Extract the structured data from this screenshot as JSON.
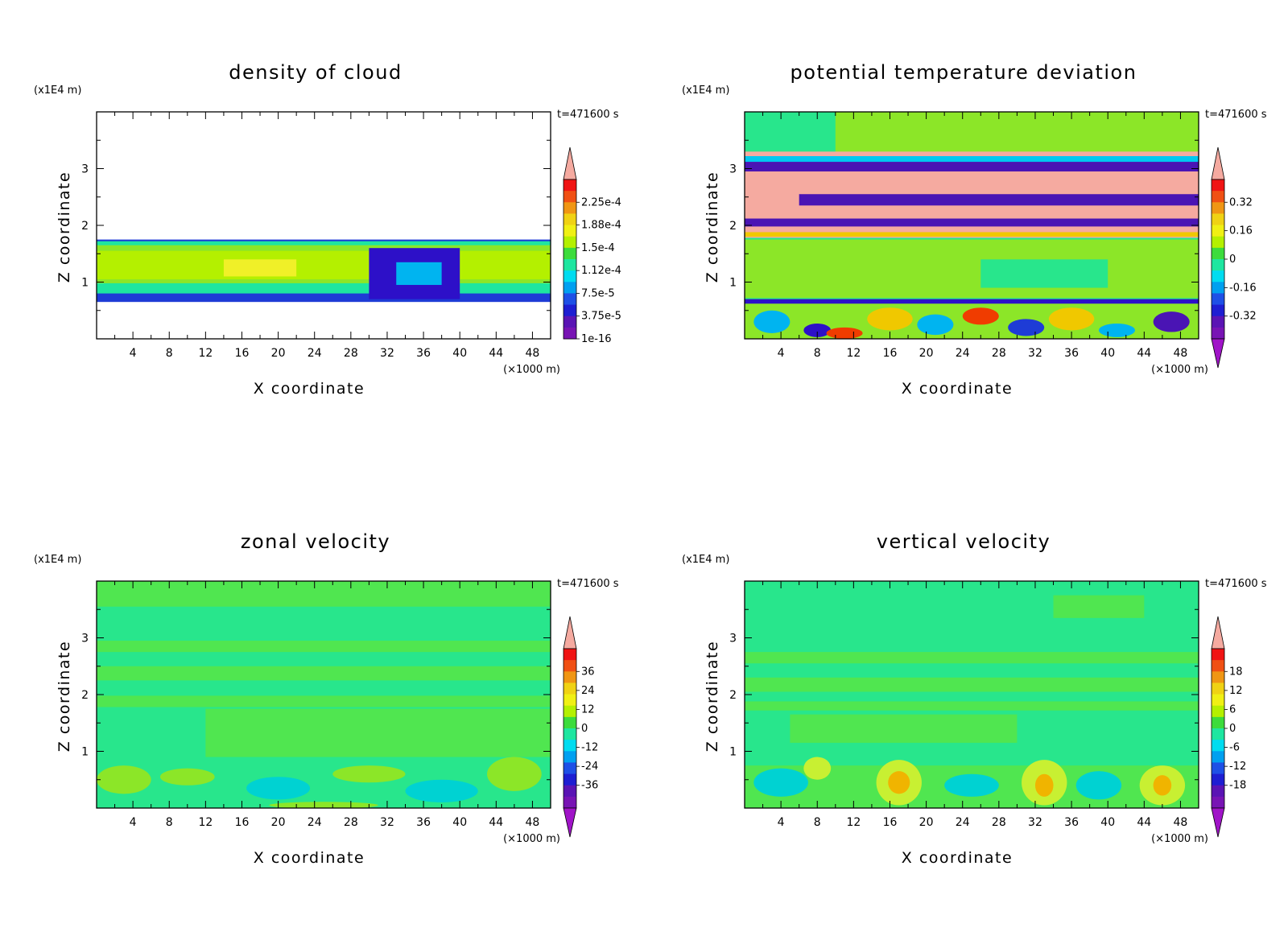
{
  "chart_data": [
    {
      "id": "cloud",
      "type": "heatmap",
      "title": "density of cloud",
      "xlabel": "X coordinate",
      "ylabel": "Z coordinate",
      "x_unit": "(×1000 m)",
      "y_unit": "(x1E4 m)",
      "time_label": "t=471600 s",
      "xlim": [
        0,
        50
      ],
      "ylim": [
        0,
        4
      ],
      "xticks": [
        "4",
        "8",
        "12",
        "16",
        "20",
        "24",
        "28",
        "32",
        "36",
        "40",
        "44",
        "48"
      ],
      "yticks": [
        "1",
        "2",
        "3"
      ],
      "colorbar": {
        "labels": [
          "2.25e-4",
          "1.88e-4",
          "1.5e-4",
          "1.12e-4",
          "7.5e-5",
          "3.75e-5",
          "1e-16"
        ],
        "bottom_arrow": false
      },
      "background": "#ffffff",
      "layers": [
        {
          "x0": 0,
          "x1": 50,
          "z0": 0.65,
          "z1": 1.75,
          "color": "#1e3cd6"
        },
        {
          "x0": 0,
          "x1": 50,
          "z0": 0.8,
          "z1": 1.72,
          "color": "#1ee6a0"
        },
        {
          "x0": 0,
          "x1": 50,
          "z0": 0.98,
          "z1": 1.65,
          "color": "#8ce628"
        },
        {
          "x0": 0,
          "x1": 50,
          "z0": 1.05,
          "z1": 1.55,
          "color": "#b4f000"
        },
        {
          "x0": 14,
          "x1": 22,
          "z0": 1.1,
          "z1": 1.4,
          "color": "#f0f028"
        },
        {
          "x0": 30,
          "x1": 40,
          "z0": 0.7,
          "z1": 1.6,
          "color": "#2d10c8"
        },
        {
          "x0": 33,
          "x1": 38,
          "z0": 0.95,
          "z1": 1.35,
          "color": "#00b4f0"
        }
      ]
    },
    {
      "id": "theta",
      "type": "heatmap",
      "title": "potential temperature deviation",
      "xlabel": "X coordinate",
      "ylabel": "Z coordinate",
      "x_unit": "(×1000 m)",
      "y_unit": "(x1E4 m)",
      "time_label": "t=471600 s",
      "xlim": [
        0,
        50
      ],
      "ylim": [
        0,
        4
      ],
      "xticks": [
        "4",
        "8",
        "12",
        "16",
        "20",
        "24",
        "28",
        "32",
        "36",
        "40",
        "44",
        "48"
      ],
      "yticks": [
        "1",
        "2",
        "3"
      ],
      "colorbar": {
        "labels": [
          "0.32",
          "0.16",
          "0",
          "-0.16",
          "-0.32"
        ],
        "bottom_arrow": true
      },
      "background": "#28e68c",
      "layers": [
        {
          "x0": 10,
          "x1": 50,
          "z0": 3.2,
          "z1": 4.0,
          "color": "#8ce628"
        },
        {
          "x0": 0,
          "x1": 50,
          "z0": 0.72,
          "z1": 1.75,
          "color": "#8ce628"
        },
        {
          "x0": 26,
          "x1": 40,
          "z0": 0.9,
          "z1": 1.4,
          "color": "#28e68c"
        },
        {
          "x0": 0,
          "x1": 50,
          "z0": 1.78,
          "z1": 3.3,
          "color": "#f5aaa0"
        },
        {
          "x0": 0,
          "x1": 50,
          "z0": 2.95,
          "z1": 3.12,
          "color": "#4a14b4"
        },
        {
          "x0": 6,
          "x1": 50,
          "z0": 2.35,
          "z1": 2.55,
          "color": "#4a14b4"
        },
        {
          "x0": 0,
          "x1": 50,
          "z0": 1.98,
          "z1": 2.12,
          "color": "#4a14b4"
        },
        {
          "x0": 0,
          "x1": 50,
          "z0": 1.8,
          "z1": 1.88,
          "color": "#f0c800"
        },
        {
          "x0": 0,
          "x1": 50,
          "z0": 3.12,
          "z1": 3.22,
          "color": "#00c8f0"
        },
        {
          "x0": 0,
          "x1": 50,
          "z0": 0.0,
          "z1": 0.7,
          "color": "#8ce628"
        },
        {
          "x0": 0,
          "x1": 50,
          "z0": 0.62,
          "z1": 0.7,
          "color": "#2d10c8"
        }
      ],
      "blobs": [
        {
          "x": 3,
          "z": 0.3,
          "rx": 2.0,
          "rz": 0.2,
          "color": "#00b4f0"
        },
        {
          "x": 8,
          "z": 0.15,
          "rx": 1.5,
          "rz": 0.12,
          "color": "#2d10c8"
        },
        {
          "x": 11,
          "z": 0.1,
          "rx": 2.0,
          "rz": 0.1,
          "color": "#f03c00"
        },
        {
          "x": 16,
          "z": 0.35,
          "rx": 2.5,
          "rz": 0.2,
          "color": "#f0c800"
        },
        {
          "x": 21,
          "z": 0.25,
          "rx": 2.0,
          "rz": 0.18,
          "color": "#00b4f0"
        },
        {
          "x": 26,
          "z": 0.4,
          "rx": 2.0,
          "rz": 0.15,
          "color": "#f03c00"
        },
        {
          "x": 31,
          "z": 0.2,
          "rx": 2.0,
          "rz": 0.15,
          "color": "#1e3cd6"
        },
        {
          "x": 36,
          "z": 0.35,
          "rx": 2.5,
          "rz": 0.2,
          "color": "#f0c800"
        },
        {
          "x": 41,
          "z": 0.15,
          "rx": 2.0,
          "rz": 0.12,
          "color": "#00b4f0"
        },
        {
          "x": 47,
          "z": 0.3,
          "rx": 2.0,
          "rz": 0.18,
          "color": "#4a14b4"
        }
      ]
    },
    {
      "id": "u",
      "type": "heatmap",
      "title": "zonal velocity",
      "xlabel": "X coordinate",
      "ylabel": "Z coordinate",
      "x_unit": "(×1000 m)",
      "y_unit": "(x1E4 m)",
      "time_label": "t=471600 s",
      "xlim": [
        0,
        50
      ],
      "ylim": [
        0,
        4
      ],
      "xticks": [
        "4",
        "8",
        "12",
        "16",
        "20",
        "24",
        "28",
        "32",
        "36",
        "40",
        "44",
        "48"
      ],
      "yticks": [
        "1",
        "2",
        "3"
      ],
      "colorbar": {
        "labels": [
          "36",
          "24",
          "12",
          "0",
          "-12",
          "-24",
          "-36"
        ],
        "bottom_arrow": true
      },
      "background": "#28e68c",
      "layers": [
        {
          "x0": 0,
          "x1": 50,
          "z0": 3.55,
          "z1": 4.0,
          "color": "#50e650"
        },
        {
          "x0": 0,
          "x1": 50,
          "z0": 2.75,
          "z1": 2.95,
          "color": "#50e650"
        },
        {
          "x0": 0,
          "x1": 50,
          "z0": 2.25,
          "z1": 2.5,
          "color": "#50e650"
        },
        {
          "x0": 0,
          "x1": 50,
          "z0": 1.78,
          "z1": 1.98,
          "color": "#50e650"
        },
        {
          "x0": 12,
          "x1": 50,
          "z0": 0.9,
          "z1": 1.75,
          "color": "#50e650"
        },
        {
          "x0": 0,
          "x1": 50,
          "z0": 0.0,
          "z1": 0.8,
          "color": "#28e68c"
        }
      ],
      "blobs": [
        {
          "x": 3,
          "z": 0.5,
          "rx": 3.0,
          "rz": 0.25,
          "color": "#8ce628"
        },
        {
          "x": 10,
          "z": 0.55,
          "rx": 3.0,
          "rz": 0.15,
          "color": "#8ce628"
        },
        {
          "x": 20,
          "z": 0.35,
          "rx": 3.5,
          "rz": 0.2,
          "color": "#00d2d2"
        },
        {
          "x": 30,
          "z": 0.6,
          "rx": 4.0,
          "rz": 0.15,
          "color": "#8ce628"
        },
        {
          "x": 38,
          "z": 0.3,
          "rx": 4.0,
          "rz": 0.2,
          "color": "#00d2d2"
        },
        {
          "x": 46,
          "z": 0.6,
          "rx": 3.0,
          "rz": 0.3,
          "color": "#8ce628"
        },
        {
          "x": 25,
          "z": 0.05,
          "rx": 6.0,
          "rz": 0.06,
          "color": "#8ce628"
        }
      ]
    },
    {
      "id": "w",
      "type": "heatmap",
      "title": "vertical velocity",
      "xlabel": "X coordinate",
      "ylabel": "Z coordinate",
      "x_unit": "(×1000 m)",
      "y_unit": "(x1E4 m)",
      "time_label": "t=471600 s",
      "xlim": [
        0,
        50
      ],
      "ylim": [
        0,
        4
      ],
      "xticks": [
        "4",
        "8",
        "12",
        "16",
        "20",
        "24",
        "28",
        "32",
        "36",
        "40",
        "44",
        "48"
      ],
      "yticks": [
        "1",
        "2",
        "3"
      ],
      "colorbar": {
        "labels": [
          "18",
          "12",
          "6",
          "0",
          "-6",
          "-12",
          "-18"
        ],
        "bottom_arrow": true
      },
      "background": "#28e68c",
      "layers": [
        {
          "x0": 34,
          "x1": 44,
          "z0": 3.35,
          "z1": 3.75,
          "color": "#50e650"
        },
        {
          "x0": 0,
          "x1": 50,
          "z0": 2.55,
          "z1": 2.75,
          "color": "#50e650"
        },
        {
          "x0": 0,
          "x1": 50,
          "z0": 2.05,
          "z1": 2.3,
          "color": "#50e650"
        },
        {
          "x0": 0,
          "x1": 50,
          "z0": 1.72,
          "z1": 1.88,
          "color": "#50e650"
        },
        {
          "x0": 5,
          "x1": 30,
          "z0": 1.15,
          "z1": 1.65,
          "color": "#50e650"
        },
        {
          "x0": 0,
          "x1": 50,
          "z0": 0.0,
          "z1": 0.75,
          "color": "#50e650"
        }
      ],
      "blobs": [
        {
          "x": 4,
          "z": 0.45,
          "rx": 3.0,
          "rz": 0.25,
          "color": "#00d2d2"
        },
        {
          "x": 8,
          "z": 0.7,
          "rx": 1.5,
          "rz": 0.2,
          "color": "#c8f032"
        },
        {
          "x": 17,
          "z": 0.45,
          "rx": 2.5,
          "rz": 0.4,
          "color": "#c8f032"
        },
        {
          "x": 17,
          "z": 0.45,
          "rx": 1.2,
          "rz": 0.2,
          "color": "#f0b400"
        },
        {
          "x": 25,
          "z": 0.4,
          "rx": 3.0,
          "rz": 0.2,
          "color": "#00d2d2"
        },
        {
          "x": 33,
          "z": 0.45,
          "rx": 2.5,
          "rz": 0.4,
          "color": "#c8f032"
        },
        {
          "x": 33,
          "z": 0.4,
          "rx": 1.0,
          "rz": 0.2,
          "color": "#f0b400"
        },
        {
          "x": 39,
          "z": 0.4,
          "rx": 2.5,
          "rz": 0.25,
          "color": "#00d2d2"
        },
        {
          "x": 46,
          "z": 0.4,
          "rx": 2.5,
          "rz": 0.35,
          "color": "#c8f032"
        },
        {
          "x": 46,
          "z": 0.4,
          "rx": 1.0,
          "rz": 0.18,
          "color": "#f0b400"
        }
      ]
    }
  ],
  "colors": {
    "colorbar_top": "#f5aaa0",
    "colorbar_bottom": "#a014c8",
    "colorbar_steps": [
      "#f01414",
      "#f05014",
      "#f09614",
      "#f0d214",
      "#f0f014",
      "#b4f000",
      "#3cdc3c",
      "#1ee6a0",
      "#00dcf0",
      "#00a0f0",
      "#1e50e6",
      "#1e1ed2",
      "#5a14b4",
      "#7814b4"
    ]
  }
}
